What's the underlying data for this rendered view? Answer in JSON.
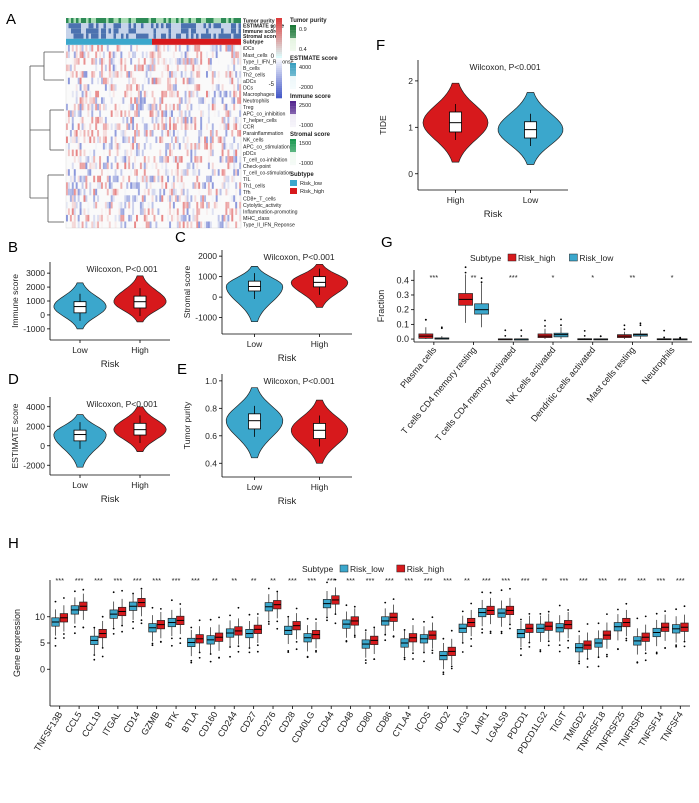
{
  "colors": {
    "risk_high": "#d7191c",
    "risk_low": "#3ba7cc"
  },
  "panel_letters": {
    "a": "A",
    "b": "B",
    "c": "C",
    "d": "D",
    "e": "E",
    "f": "F",
    "g": "G",
    "h": "H"
  },
  "chart_data": [
    {
      "id": "A",
      "type": "heatmap",
      "annotation_tracks": [
        "Tumor purity",
        "ESTIMATE score",
        "Immune score",
        "Stromal score",
        "Subtype"
      ],
      "rows": [
        "iDCs",
        "Mast_cells",
        "Type_I_IFN_Reponse",
        "B_cells",
        "Th2_cells",
        "aDCs",
        "DCs",
        "Macrophages",
        "Neutrophils",
        "Treg",
        "APC_co_inhibition",
        "T_helper_cells",
        "CCR",
        "Parainflammation",
        "NK_cells",
        "APC_co_stimulation",
        "pDCs",
        "T_cell_co-inhibition",
        "Check-point",
        "T_cell_co-stimulation",
        "TIL",
        "Th1_cells",
        "Tfh",
        "CD8+_T_cells",
        "Cytolytic_activity",
        "Inflammation-promoting",
        "MHC_class",
        "Type_II_IFN_Reponse"
      ],
      "color_scale": {
        "ticks": [
          "5",
          "0",
          "-5"
        ]
      },
      "legend": [
        {
          "title": "Tumor purity",
          "labels": [
            "0.9",
            "0.4"
          ]
        },
        {
          "title": "ESTIMATE score",
          "labels": [
            "4000",
            "-2000"
          ]
        },
        {
          "title": "Immune score",
          "labels": [
            "2500",
            "-1000"
          ]
        },
        {
          "title": "Stromal score",
          "labels": [
            "1500",
            "-1000"
          ]
        },
        {
          "title": "Subtype",
          "labels": [
            "Risk_low",
            "Risk_high"
          ]
        }
      ]
    },
    {
      "id": "B",
      "type": "violin",
      "title": "Wilcoxon, P<0.001",
      "xlabel": "Risk",
      "ylabel": "Immune score",
      "ylim": [
        -1800,
        3800
      ],
      "yticks": [
        "-1000",
        "0",
        "1000",
        "2000",
        "3000"
      ],
      "ytick_values": [
        -1000,
        0,
        1000,
        2000,
        3000
      ],
      "groups": [
        {
          "name": "Low",
          "color": "risk_low",
          "q1": 150,
          "median": 600,
          "q3": 950,
          "min": -1000,
          "max": 2300
        },
        {
          "name": "High",
          "color": "risk_high",
          "q1": 500,
          "median": 950,
          "q3": 1350,
          "min": -500,
          "max": 2800
        }
      ]
    },
    {
      "id": "C",
      "type": "violin",
      "title": "Wilcoxon, P<0.001",
      "xlabel": "Risk",
      "ylabel": "Stromal score",
      "ylim": [
        -1800,
        2300
      ],
      "yticks": [
        "-1000",
        "0",
        "1000",
        "2000"
      ],
      "ytick_values": [
        -1000,
        0,
        1000,
        2000
      ],
      "groups": [
        {
          "name": "Low",
          "color": "risk_low",
          "q1": 300,
          "median": 520,
          "q3": 780,
          "min": -1200,
          "max": 1500
        },
        {
          "name": "High",
          "color": "risk_high",
          "q1": 500,
          "median": 720,
          "q3": 1000,
          "min": -500,
          "max": 1600
        }
      ]
    },
    {
      "id": "D",
      "type": "violin",
      "title": "Wilcoxon, P<0.001",
      "xlabel": "Risk",
      "ylabel": "ESTIMATE score",
      "ylim": [
        -3000,
        5000
      ],
      "yticks": [
        "-2000",
        "0",
        "2000",
        "4000"
      ],
      "ytick_values": [
        -2000,
        0,
        2000,
        4000
      ],
      "groups": [
        {
          "name": "Low",
          "color": "risk_low",
          "q1": 500,
          "median": 1150,
          "q3": 1600,
          "min": -2200,
          "max": 3200
        },
        {
          "name": "High",
          "color": "risk_high",
          "q1": 1100,
          "median": 1650,
          "q3": 2300,
          "min": -600,
          "max": 4000
        }
      ]
    },
    {
      "id": "E",
      "type": "violin",
      "title": "Wilcoxon, P<0.001",
      "xlabel": "Risk",
      "ylabel": "Tumor purity",
      "ylim": [
        0.3,
        1.05
      ],
      "yticks": [
        "0.4",
        "0.6",
        "0.8",
        "1.0"
      ],
      "ytick_values": [
        0.4,
        0.6,
        0.8,
        1.0
      ],
      "groups": [
        {
          "name": "Low",
          "color": "risk_low",
          "q1": 0.65,
          "median": 0.71,
          "q3": 0.76,
          "min": 0.44,
          "max": 0.95
        },
        {
          "name": "High",
          "color": "risk_high",
          "q1": 0.58,
          "median": 0.64,
          "q3": 0.69,
          "min": 0.4,
          "max": 0.86
        }
      ]
    },
    {
      "id": "F",
      "type": "violin",
      "title": "Wilcoxon, P<0.001",
      "xlabel": "Risk",
      "ylabel": "TIDE",
      "ylim": [
        -0.35,
        2.45
      ],
      "yticks": [
        "0",
        "1",
        "2"
      ],
      "ytick_values": [
        0,
        1,
        2
      ],
      "groups": [
        {
          "name": "High",
          "color": "risk_high",
          "q1": 0.9,
          "median": 1.1,
          "q3": 1.33,
          "min": 0.25,
          "max": 1.95
        },
        {
          "name": "Low",
          "color": "risk_low",
          "q1": 0.77,
          "median": 0.95,
          "q3": 1.12,
          "min": 0.2,
          "max": 1.75
        }
      ]
    },
    {
      "id": "G",
      "type": "box",
      "ylabel": "Fraction",
      "ylim": [
        -0.02,
        0.47
      ],
      "yticks": [
        "0.0",
        "0.1",
        "0.2",
        "0.3",
        "0.4"
      ],
      "ytick_values": [
        0,
        0.1,
        0.2,
        0.3,
        0.4
      ],
      "legend_title": "Subtype",
      "legend": [
        "Risk_high",
        "Risk_low"
      ],
      "categories": [
        "Plasma cells",
        "T cells CD4 memory resting",
        "T cells CD4 memory activated",
        "NK cells activated",
        "Dendritic cells activated",
        "Mast cells resting",
        "Neutrophils"
      ],
      "significance": [
        "***",
        "**",
        "***",
        "*",
        "*",
        "**",
        "*"
      ],
      "series": [
        {
          "name": "Risk_high",
          "color": "risk_high",
          "q1": [
            0.005,
            0.23,
            0.0,
            0.01,
            0.0,
            0.01,
            0.0
          ],
          "median": [
            0.02,
            0.27,
            0.0,
            0.02,
            0.0,
            0.02,
            0.0
          ],
          "q3": [
            0.035,
            0.31,
            0.001,
            0.035,
            0.002,
            0.03,
            0.002
          ],
          "whisker_low": [
            0.0,
            0.11,
            0.0,
            0.0,
            0.0,
            0.0,
            0.0
          ],
          "whisker_high": [
            0.08,
            0.44,
            0.004,
            0.07,
            0.005,
            0.05,
            0.006
          ]
        },
        {
          "name": "Risk_low",
          "color": "risk_low",
          "q1": [
            0.0,
            0.17,
            0.0,
            0.015,
            0.0,
            0.02,
            0.0
          ],
          "median": [
            0.002,
            0.2,
            0.0,
            0.03,
            0.0,
            0.03,
            0.0
          ],
          "q3": [
            0.008,
            0.24,
            0.0,
            0.04,
            0.001,
            0.035,
            0.001
          ],
          "whisker_low": [
            0.0,
            0.08,
            0.0,
            0.0,
            0.0,
            0.0,
            0.0
          ],
          "whisker_high": [
            0.02,
            0.38,
            0.002,
            0.08,
            0.003,
            0.06,
            0.003
          ]
        }
      ]
    },
    {
      "id": "H",
      "type": "box",
      "ylabel": "Gene expression",
      "ylim": [
        -7,
        17
      ],
      "yticks": [
        "0",
        "5",
        "10"
      ],
      "ytick_values": [
        0,
        5,
        10
      ],
      "legend_title": "Subtype",
      "legend": [
        "Risk_low",
        "Risk_high"
      ],
      "categories": [
        "TNFSF13B",
        "CCL5",
        "CCL19",
        "ITGAL",
        "CD14",
        "GZMB",
        "BTK",
        "BTLA",
        "CD160",
        "CD244",
        "CD27",
        "CD276",
        "CD28",
        "CD40LG",
        "CD44",
        "CD48",
        "CD80",
        "CD86",
        "CTLA4",
        "ICOS",
        "IDO2",
        "LAG3",
        "LAIR1",
        "LGALS9",
        "PDCD1",
        "PDCD1LG2",
        "TIGIT",
        "TMIGD2",
        "TNFRSF18",
        "TNFRSF25",
        "TNFRSF8",
        "TNFSF14",
        "TNFSF4"
      ],
      "significance": [
        "***",
        "***",
        "***",
        "***",
        "***",
        "***",
        "***",
        "***",
        "**",
        "**",
        "**",
        "**",
        "***",
        "***",
        "***",
        "***",
        "***",
        "***",
        "***",
        "***",
        "***",
        "**",
        "***",
        "***",
        "***",
        "**",
        "***",
        "***",
        "***",
        "***",
        "***",
        "***",
        "***"
      ],
      "series": [
        {
          "name": "Risk_low",
          "color": "risk_low",
          "median": [
            9.0,
            11.3,
            5.5,
            10.5,
            12.0,
            7.9,
            8.9,
            5.1,
            5.6,
            6.9,
            6.8,
            11.9,
            7.4,
            6.0,
            12.5,
            8.6,
            4.8,
            9.2,
            5.0,
            5.8,
            2.6,
            7.8,
            10.8,
            10.7,
            6.8,
            7.8,
            7.9,
            4.1,
            5.0,
            8.1,
            5.4,
            7.0,
            7.7
          ]
        },
        {
          "name": "Risk_high",
          "color": "risk_high",
          "median": [
            9.8,
            12.0,
            6.8,
            11.0,
            12.7,
            8.5,
            9.3,
            5.8,
            6.1,
            7.3,
            7.6,
            12.3,
            8.3,
            6.6,
            13.2,
            9.2,
            5.5,
            9.9,
            6.0,
            6.5,
            3.4,
            8.9,
            11.2,
            11.2,
            7.8,
            8.2,
            8.5,
            4.6,
            6.5,
            8.9,
            6.1,
            8.0,
            8.0
          ]
        }
      ]
    }
  ]
}
